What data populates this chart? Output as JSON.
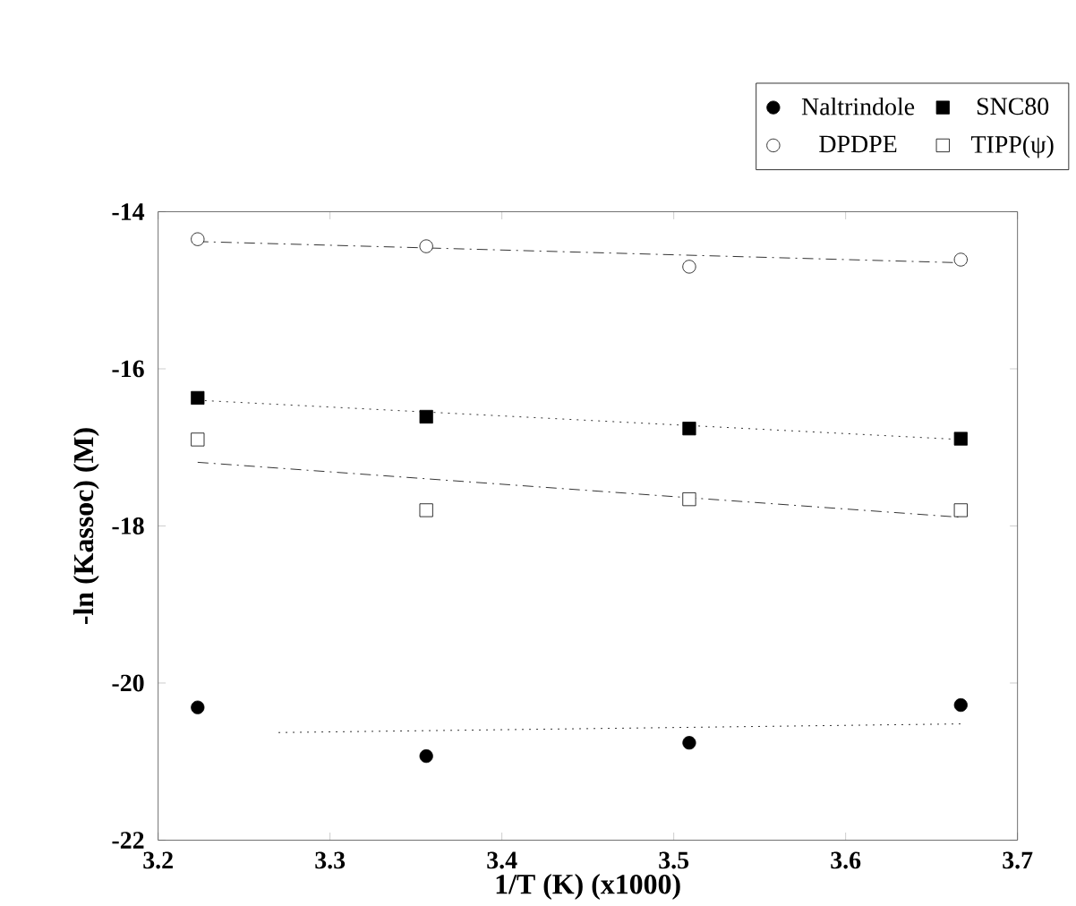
{
  "chart_data": {
    "type": "scatter",
    "xlabel": "1/T (K) (x1000)",
    "ylabel": "-ln (Kassoc) (M)",
    "xlim": [
      3.2,
      3.7
    ],
    "ylim": [
      -22,
      -14
    ],
    "xticks": [
      3.2,
      3.3,
      3.4,
      3.5,
      3.6,
      3.7
    ],
    "yticks": [
      -22,
      -20,
      -18,
      -16,
      -14
    ],
    "legend": "top right",
    "grid": false,
    "series": [
      {
        "name": "Naltrindole",
        "color": "#000000",
        "marker": "circle",
        "x": [
          3.223,
          3.356,
          3.509,
          3.667
        ],
        "values": [
          -20.31,
          -20.93,
          -20.76,
          -20.28
        ]
      },
      {
        "name": "SNC80",
        "color": "#000000",
        "marker": "square",
        "x": [
          3.223,
          3.356,
          3.509,
          3.667
        ],
        "values": [
          -16.37,
          -16.61,
          -16.76,
          -16.89
        ]
      },
      {
        "name": "DPDPE",
        "color": "#ffffff",
        "marker": "circle",
        "x": [
          3.223,
          3.356,
          3.509,
          3.667
        ],
        "values": [
          -14.35,
          -14.44,
          -14.7,
          -14.61
        ]
      },
      {
        "name": "TIPP(ψ)",
        "color": "#ffffff",
        "marker": "square",
        "x": [
          3.223,
          3.356,
          3.509,
          3.667
        ],
        "values": [
          -16.9,
          -17.8,
          -17.66,
          -17.8
        ]
      },
      {
        "type": "line",
        "color": "#000000",
        "line_style": "dotted",
        "marker": "none",
        "x": [
          3.27,
          3.667
        ],
        "values": [
          -20.63,
          -20.52
        ]
      },
      {
        "type": "line",
        "color": "#000000",
        "line_style": "dotted",
        "marker": "none",
        "x": [
          3.223,
          3.667
        ],
        "values": [
          -16.4,
          -16.9
        ]
      },
      {
        "type": "line",
        "color": "#000000",
        "line_style": "dashed",
        "marker": "none",
        "x": [
          3.223,
          3.667
        ],
        "values": [
          -14.38,
          -14.65
        ]
      },
      {
        "type": "line",
        "color": "#000000",
        "line_style": "dashed",
        "marker": "none",
        "x": [
          3.223,
          3.667
        ],
        "values": [
          -17.19,
          -17.89
        ]
      }
    ]
  }
}
